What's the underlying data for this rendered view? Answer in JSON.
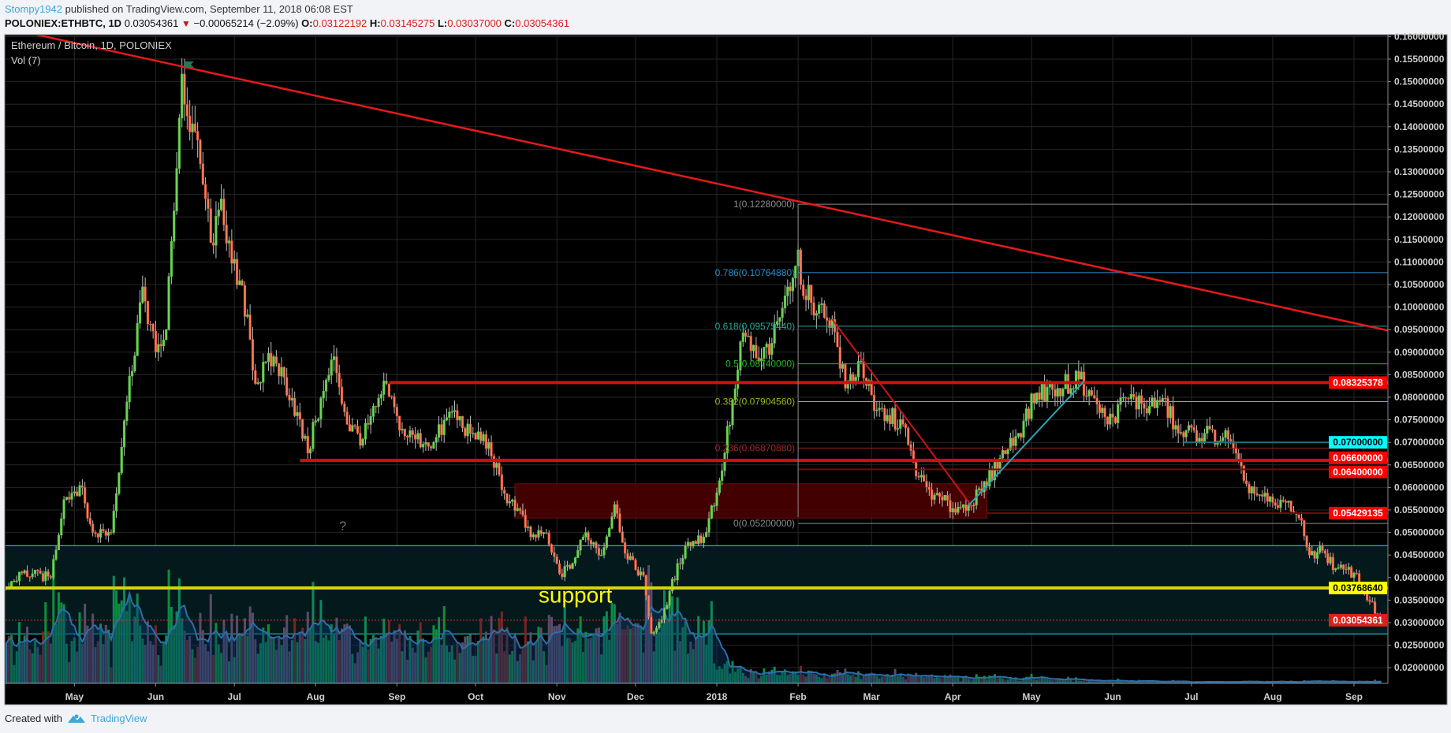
{
  "header": {
    "author": "Stompy1942",
    "published": "published on TradingView.com, September 11, 2018 06:08 EST",
    "symbol": "POLONIEX:ETHBTC, 1D",
    "last": "0.03054361",
    "change_arrow": "▼",
    "change": "−0.00065214 (−2.09%)",
    "o_label": "O:",
    "o_value": "0.03122192",
    "h_label": "H:",
    "h_value": "0.03145275",
    "l_label": "L:",
    "l_value": "0.03037000",
    "c_label": "C:",
    "c_value": "0.03054361"
  },
  "chart": {
    "title": "Ethereum / Bitcoin, 1D, POLONIEX",
    "volume_label": "Vol (7)",
    "support_text": "support",
    "question_text": "?"
  },
  "footer": {
    "created_with": "Created with",
    "brand": "TradingView"
  },
  "colors": {
    "background": "#000000",
    "up": "#6fd35a",
    "down": "#f5825f",
    "trendline": "#e5191b",
    "support_line": "#d4d40a",
    "zone": "#04191c",
    "zone_border": "#27e0e6",
    "resistance_box": "#4a0000"
  },
  "chart_data": {
    "type": "candlestick",
    "price_ticks": [
      "0.16000000",
      "0.15500000",
      "0.15000000",
      "0.14500000",
      "0.14000000",
      "0.13500000",
      "0.13000000",
      "0.12500000",
      "0.12000000",
      "0.11500000",
      "0.11000000",
      "0.10500000",
      "0.10000000",
      "0.09500000",
      "0.09000000",
      "0.08500000",
      "0.08000000",
      "0.07500000",
      "0.07000000",
      "0.06500000",
      "0.06000000",
      "0.05500000",
      "0.05000000",
      "0.04500000",
      "0.04000000",
      "0.03500000",
      "0.03000000",
      "0.02500000",
      "0.02000000"
    ],
    "time_ticks": [
      {
        "label": "May",
        "date": "2017-05-01"
      },
      {
        "label": "Jun",
        "date": "2017-06-01"
      },
      {
        "label": "Jul",
        "date": "2017-07-01"
      },
      {
        "label": "Aug",
        "date": "2017-08-01"
      },
      {
        "label": "Sep",
        "date": "2017-09-01"
      },
      {
        "label": "Oct",
        "date": "2017-10-01"
      },
      {
        "label": "Nov",
        "date": "2017-11-01"
      },
      {
        "label": "Dec",
        "date": "2017-12-01"
      },
      {
        "label": "2018",
        "date": "2018-01-01"
      },
      {
        "label": "Feb",
        "date": "2018-02-01"
      },
      {
        "label": "Mar",
        "date": "2018-03-01"
      },
      {
        "label": "Apr",
        "date": "2018-04-01"
      },
      {
        "label": "May",
        "date": "2018-05-01"
      },
      {
        "label": "Jun",
        "date": "2018-06-01"
      },
      {
        "label": "Jul",
        "date": "2018-07-01"
      },
      {
        "label": "Aug",
        "date": "2018-08-01"
      },
      {
        "label": "Sep",
        "date": "2018-09-01"
      }
    ],
    "closes": [
      [
        "2017-04-05",
        0.0379
      ],
      [
        "2017-04-11",
        0.041
      ],
      [
        "2017-04-22",
        0.04
      ],
      [
        "2017-04-27",
        0.0573
      ],
      [
        "2017-05-03",
        0.0604
      ],
      [
        "2017-05-08",
        0.05
      ],
      [
        "2017-05-15",
        0.05
      ],
      [
        "2017-05-20",
        0.0748
      ],
      [
        "2017-05-27",
        0.1045
      ],
      [
        "2017-06-01",
        0.09
      ],
      [
        "2017-06-05",
        0.095
      ],
      [
        "2017-06-11",
        0.1517
      ],
      [
        "2017-06-13",
        0.1424
      ],
      [
        "2017-06-16",
        0.139
      ],
      [
        "2017-06-20",
        0.124
      ],
      [
        "2017-06-23",
        0.1137
      ],
      [
        "2017-06-26",
        0.124
      ],
      [
        "2017-06-30",
        0.1097
      ],
      [
        "2017-07-06",
        0.0983
      ],
      [
        "2017-07-09",
        0.083
      ],
      [
        "2017-07-16",
        0.089
      ],
      [
        "2017-07-23",
        0.0798
      ],
      [
        "2017-07-29",
        0.0676
      ],
      [
        "2017-08-01",
        0.0748
      ],
      [
        "2017-08-08",
        0.089
      ],
      [
        "2017-08-13",
        0.074
      ],
      [
        "2017-08-19",
        0.0707
      ],
      [
        "2017-08-24",
        0.0779
      ],
      [
        "2017-08-28",
        0.083
      ],
      [
        "2017-09-02",
        0.0727
      ],
      [
        "2017-09-08",
        0.0707
      ],
      [
        "2017-09-15",
        0.07
      ],
      [
        "2017-09-22",
        0.0768
      ],
      [
        "2017-09-29",
        0.072
      ],
      [
        "2017-10-06",
        0.07
      ],
      [
        "2017-10-11",
        0.0594
      ],
      [
        "2017-10-17",
        0.0553
      ],
      [
        "2017-10-22",
        0.049
      ],
      [
        "2017-10-27",
        0.05
      ],
      [
        "2017-11-02",
        0.0409
      ],
      [
        "2017-11-06",
        0.042
      ],
      [
        "2017-11-12",
        0.05
      ],
      [
        "2017-11-18",
        0.045
      ],
      [
        "2017-11-23",
        0.0562
      ],
      [
        "2017-11-28",
        0.044
      ],
      [
        "2017-12-04",
        0.0405
      ],
      [
        "2017-12-07",
        0.0276
      ],
      [
        "2017-12-11",
        0.0307
      ],
      [
        "2017-12-14",
        0.037
      ],
      [
        "2017-12-20",
        0.0471
      ],
      [
        "2017-12-27",
        0.049
      ],
      [
        "2018-01-02",
        0.0615
      ],
      [
        "2018-01-08",
        0.0819
      ],
      [
        "2018-01-11",
        0.0943
      ],
      [
        "2018-01-17",
        0.088
      ],
      [
        "2018-01-22",
        0.092
      ],
      [
        "2018-01-27",
        0.1025
      ],
      [
        "2018-02-01",
        0.1127
      ],
      [
        "2018-02-03",
        0.1025
      ],
      [
        "2018-02-09",
        0.1005
      ],
      [
        "2018-02-14",
        0.0973
      ],
      [
        "2018-02-19",
        0.082
      ],
      [
        "2018-02-25",
        0.088
      ],
      [
        "2018-03-02",
        0.077
      ],
      [
        "2018-03-07",
        0.076
      ],
      [
        "2018-03-13",
        0.074
      ],
      [
        "2018-03-18",
        0.0625
      ],
      [
        "2018-03-25",
        0.0583
      ],
      [
        "2018-04-01",
        0.0553
      ],
      [
        "2018-04-07",
        0.056
      ],
      [
        "2018-04-12",
        0.059
      ],
      [
        "2018-04-19",
        0.0665
      ],
      [
        "2018-04-26",
        0.072
      ],
      [
        "2018-05-03",
        0.081
      ],
      [
        "2018-05-11",
        0.082
      ],
      [
        "2018-05-19",
        0.084
      ],
      [
        "2018-05-25",
        0.0798
      ],
      [
        "2018-05-30",
        0.074
      ],
      [
        "2018-06-06",
        0.0798
      ],
      [
        "2018-06-15",
        0.078
      ],
      [
        "2018-06-20",
        0.0798
      ],
      [
        "2018-06-26",
        0.072
      ],
      [
        "2018-07-06",
        0.072
      ],
      [
        "2018-07-15",
        0.0707
      ],
      [
        "2018-07-21",
        0.0615
      ],
      [
        "2018-07-26",
        0.0583
      ],
      [
        "2018-08-02",
        0.056
      ],
      [
        "2018-08-07",
        0.057
      ],
      [
        "2018-08-11",
        0.0532
      ],
      [
        "2018-08-15",
        0.045
      ],
      [
        "2018-08-20",
        0.046
      ],
      [
        "2018-08-25",
        0.042
      ],
      [
        "2018-09-01",
        0.041
      ],
      [
        "2018-09-07",
        0.0347
      ],
      [
        "2018-09-11",
        0.03054361
      ]
    ],
    "trendline": {
      "points": [
        [
          "2017-06-10",
          0.1535
        ],
        [
          "2018-09-14",
          0.0948
        ]
      ],
      "color": "#e5191b"
    },
    "segments": [
      {
        "from": [
          "2018-02-14",
          0.0973
        ],
        "to": [
          "2018-04-08",
          0.056
        ],
        "color": "#c8141a"
      },
      {
        "from": [
          "2018-04-07",
          0.056
        ],
        "to": [
          "2018-05-21",
          0.0835
        ],
        "color": "#2aa6b5"
      }
    ],
    "hlines": [
      {
        "price": 0.08325378,
        "from": "2017-08-29",
        "color": "#d40f0f",
        "width": 4,
        "label": "0.08325378",
        "label_bg": "#ff0000",
        "label_fg": "#ffffff"
      },
      {
        "price": 0.066,
        "from": "2017-07-26",
        "color": "#d40f0f",
        "width": 4,
        "label": "0.06600000",
        "label_bg": "#ff0000",
        "label_fg": "#ffffff"
      },
      {
        "price": 0.064,
        "from": "2018-02-01",
        "color": "#7a0a0a",
        "width": 2,
        "label": "0.06400000",
        "label_bg": "#ff0000",
        "label_fg": "#ffffff"
      },
      {
        "price": 0.07,
        "from": "2018-06-28",
        "color": "#1f6f80",
        "width": 2,
        "label": "0.07000000",
        "label_bg": "#00ffff",
        "label_fg": "#000000"
      },
      {
        "price": 0.05429135,
        "from": "2018-04-14",
        "color": "#6a0a0a",
        "width": 2,
        "label": "0.05429135",
        "label_bg": "#ff0000",
        "label_fg": "#ffffff"
      },
      {
        "price": 0.0376864,
        "from": "2017-04-01",
        "color": "#d4d40a",
        "width": 4,
        "label": "0.03768640",
        "label_bg": "#ffff00",
        "label_fg": "#000000"
      }
    ],
    "current_price": {
      "price": 0.03054361,
      "label": "0.03054361",
      "label_bg": "#d8211b",
      "label_fg": "#ffffff"
    },
    "zone": {
      "top": 0.0471,
      "bottom": 0.0275
    },
    "box": {
      "from": "2017-10-16",
      "to": "2018-04-14",
      "top": 0.0608,
      "bottom": 0.0532
    },
    "fib": {
      "from": "2018-02-01",
      "high": 0.1228,
      "low": 0.052,
      "levels": [
        {
          "label": "1(0.12280000)",
          "price": 0.1228,
          "color": "#8a8a8a"
        },
        {
          "label": "0.786(0.10764880)",
          "price": 0.1076488,
          "color": "#2d8fd0"
        },
        {
          "label": "0.618(0.09575440)",
          "price": 0.0957544,
          "color": "#26a69a"
        },
        {
          "label": "0.5(0.08740000)",
          "price": 0.0874,
          "color": "#28b828"
        },
        {
          "label": "0.382(0.07904560)",
          "price": 0.0790456,
          "color": "#9ab81b"
        },
        {
          "label": "0.236(0.06870880)",
          "price": 0.0687088,
          "color": "#a82626"
        },
        {
          "label": "0(0.05200000)",
          "price": 0.052,
          "color": "#8a8a8a"
        }
      ]
    },
    "flag_date": "2017-06-12"
  }
}
